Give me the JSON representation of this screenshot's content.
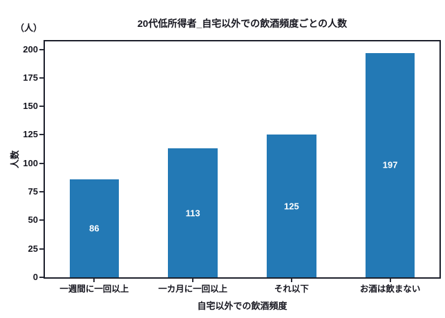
{
  "chart_data": {
    "type": "bar",
    "title": "20代低所得者_自宅以外での飲酒頻度ごとの人数",
    "unit_label": "（人）",
    "ylabel": "人数",
    "xlabel": "自宅以外での飲酒頻度",
    "categories": [
      "一週間に一回以上",
      "一カ月に一回以上",
      "それ以下",
      "お酒は飲まない"
    ],
    "values": [
      86,
      113,
      125,
      197
    ],
    "yticks": [
      0,
      25,
      50,
      75,
      100,
      125,
      150,
      175,
      200
    ],
    "ylim": [
      0,
      207
    ],
    "bar_width_fraction": 0.5,
    "grid": false,
    "legend": null,
    "colors": {
      "bar": "#2379b5",
      "bar_label": "#ffffff",
      "text": "#16161f",
      "spine": "#1c1f2b",
      "tick": "#2a2d38",
      "background": "#ffffff"
    }
  }
}
